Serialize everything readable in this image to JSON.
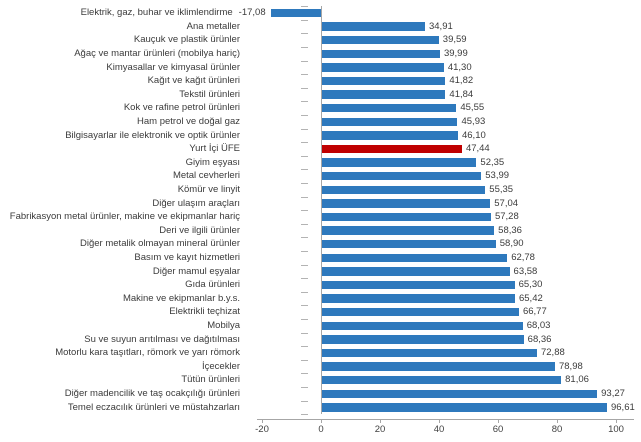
{
  "chart_data": {
    "type": "bar",
    "orientation": "horizontal",
    "title": "",
    "xlabel": "",
    "ylabel": "",
    "xlim": [
      -20,
      106
    ],
    "x_ticks": [
      -20,
      0,
      20,
      40,
      60,
      80,
      100
    ],
    "x_tick_labels": [
      "-20",
      "0",
      "20",
      "40",
      "60",
      "80",
      "100"
    ],
    "grid": false,
    "legend": false,
    "bar_color": "#2e79bd",
    "highlight_color": "#c00000",
    "axis_color": "#a6a6a6",
    "highlight_category": "Yurt İçi ÜFE",
    "rows": [
      {
        "label": "Elektrik, gaz, buhar ve iklimlendirme",
        "value": -17.08,
        "display": "-17,08"
      },
      {
        "label": "Ana metaller",
        "value": 34.91,
        "display": "34,91"
      },
      {
        "label": "Kauçuk ve plastik ürünler",
        "value": 39.59,
        "display": "39,59"
      },
      {
        "label": "Ağaç ve mantar ürünleri (mobilya hariç)",
        "value": 39.99,
        "display": "39,99"
      },
      {
        "label": "Kimyasallar ve kimyasal ürünler",
        "value": 41.3,
        "display": "41,30"
      },
      {
        "label": "Kağıt ve kağıt ürünleri",
        "value": 41.82,
        "display": "41,82"
      },
      {
        "label": "Tekstil ürünleri",
        "value": 41.84,
        "display": "41,84"
      },
      {
        "label": "Kok ve rafine petrol ürünleri",
        "value": 45.55,
        "display": "45,55"
      },
      {
        "label": "Ham petrol ve doğal gaz",
        "value": 45.93,
        "display": "45,93"
      },
      {
        "label": "Bilgisayarlar ile elektronik ve optik ürünler",
        "value": 46.1,
        "display": "46,10"
      },
      {
        "label": "Yurt İçi ÜFE",
        "value": 47.44,
        "display": "47,44",
        "highlight": true
      },
      {
        "label": "Giyim eşyası",
        "value": 52.35,
        "display": "52,35"
      },
      {
        "label": "Metal cevherleri",
        "value": 53.99,
        "display": "53,99"
      },
      {
        "label": "Kömür ve linyit",
        "value": 55.35,
        "display": "55,35"
      },
      {
        "label": "Diğer ulaşım araçları",
        "value": 57.04,
        "display": "57,04"
      },
      {
        "label": "Fabrikasyon metal ürünler, makine ve ekipmanlar hariç",
        "value": 57.28,
        "display": "57,28"
      },
      {
        "label": "Deri ve ilgili ürünler",
        "value": 58.36,
        "display": "58,36"
      },
      {
        "label": "Diğer metalik olmayan mineral ürünler",
        "value": 58.9,
        "display": "58,90"
      },
      {
        "label": "Basım ve kayıt hizmetleri",
        "value": 62.78,
        "display": "62,78"
      },
      {
        "label": "Diğer mamul eşyalar",
        "value": 63.58,
        "display": "63,58"
      },
      {
        "label": "Gıda ürünleri",
        "value": 65.3,
        "display": "65,30"
      },
      {
        "label": "Makine ve ekipmanlar b.y.s.",
        "value": 65.42,
        "display": "65,42"
      },
      {
        "label": "Elektrikli teçhizat",
        "value": 66.77,
        "display": "66,77"
      },
      {
        "label": "Mobilya",
        "value": 68.03,
        "display": "68,03"
      },
      {
        "label": "Su ve suyun arıtılması ve dağıtılması",
        "value": 68.36,
        "display": "68,36"
      },
      {
        "label": "Motorlu kara taşıtları, römork ve yarı römork",
        "value": 72.88,
        "display": "72,88"
      },
      {
        "label": "İçecekler",
        "value": 78.98,
        "display": "78,98"
      },
      {
        "label": "Tütün ürünleri",
        "value": 81.06,
        "display": "81,06"
      },
      {
        "label": "Diğer madencilik ve taş ocakçılığı ürünleri",
        "value": 93.27,
        "display": "93,27"
      },
      {
        "label": "Temel eczacılık ürünleri ve müstahzarları",
        "value": 96.61,
        "display": "96,61"
      }
    ]
  }
}
